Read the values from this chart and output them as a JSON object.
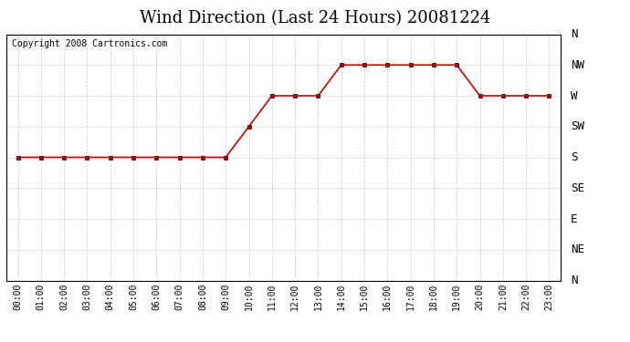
{
  "title": "Wind Direction (Last 24 Hours) 20081224",
  "copyright": "Copyright 2008 Cartronics.com",
  "hours": [
    0,
    1,
    2,
    3,
    4,
    5,
    6,
    7,
    8,
    9,
    10,
    11,
    12,
    13,
    14,
    15,
    16,
    17,
    18,
    19,
    20,
    21,
    22,
    23
  ],
  "hour_labels": [
    "00:00",
    "01:00",
    "02:00",
    "03:00",
    "04:00",
    "05:00",
    "06:00",
    "07:00",
    "08:00",
    "09:00",
    "10:00",
    "11:00",
    "12:00",
    "13:00",
    "14:00",
    "15:00",
    "16:00",
    "17:00",
    "18:00",
    "19:00",
    "20:00",
    "21:00",
    "22:00",
    "23:00"
  ],
  "wind_values": [
    180,
    180,
    180,
    180,
    180,
    180,
    180,
    180,
    180,
    180,
    225,
    270,
    270,
    270,
    315,
    315,
    315,
    315,
    315,
    315,
    270,
    270,
    270,
    270
  ],
  "line_color": "#cc0000",
  "marker": "s",
  "marker_size": 3,
  "background_color": "#ffffff",
  "plot_bg_color": "#ffffff",
  "grid_color": "#cccccc",
  "y_ticks": [
    360,
    315,
    270,
    225,
    180,
    135,
    90,
    45,
    0
  ],
  "y_tick_labels": [
    "N",
    "NW",
    "W",
    "SW",
    "S",
    "SE",
    "E",
    "NE",
    "N"
  ],
  "ylim": [
    0,
    360
  ],
  "title_fontsize": 13,
  "copyright_fontsize": 7,
  "tick_fontsize": 7,
  "y_tick_fontsize": 9
}
